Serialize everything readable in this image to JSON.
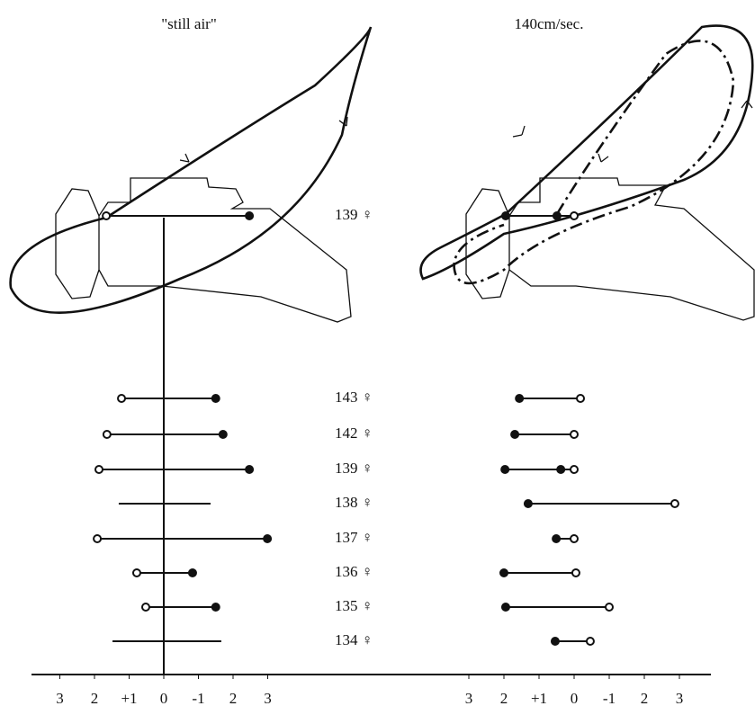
{
  "specimens": [
    "139 ♀",
    "143 ♀",
    "142 ♀",
    "139 ♀",
    "138 ♀",
    "137 ♀",
    "136 ♀",
    "135 ♀",
    "134 ♀"
  ],
  "panels": [
    {
      "title": "\"still air\"",
      "xticks": [
        3,
        {
          "value": 2,
          "label": "2"
        },
        {
          "value": 1,
          "label": "+1"
        },
        0,
        -1,
        {
          "value": -2,
          "label": "2"
        },
        {
          "value": -3,
          "label": "3"
        }
      ],
      "rows": [
        [
          {
            "value": 1.66,
            "marker": "open"
          },
          {
            "value": -2.47,
            "marker": "filled"
          }
        ],
        [
          {
            "value": 1.22,
            "marker": "open"
          },
          {
            "value": -1.5,
            "marker": "filled"
          }
        ],
        [
          {
            "value": 1.64,
            "marker": "open"
          },
          {
            "value": -1.71,
            "marker": "filled"
          }
        ],
        [
          {
            "value": 1.87,
            "marker": "open"
          },
          {
            "value": -2.47,
            "marker": "filled"
          }
        ],
        [
          {
            "value": 1.3,
            "marker": "none"
          },
          {
            "value": -1.35,
            "marker": "none"
          }
        ],
        [
          {
            "value": 1.92,
            "marker": "open"
          },
          {
            "value": -2.99,
            "marker": "filled"
          }
        ],
        [
          {
            "value": 0.78,
            "marker": "open"
          },
          {
            "value": -0.83,
            "marker": "filled"
          }
        ],
        [
          {
            "value": 0.52,
            "marker": "open"
          },
          {
            "value": -1.5,
            "marker": "filled"
          }
        ],
        [
          {
            "value": 1.48,
            "marker": "none"
          },
          {
            "value": -1.66,
            "marker": "none"
          }
        ]
      ]
    },
    {
      "title": "140cm/sec.",
      "xticks": [
        3,
        {
          "value": 2,
          "label": "2"
        },
        {
          "value": 1,
          "label": "+1"
        },
        0,
        -1,
        {
          "value": -2,
          "label": "2"
        },
        {
          "value": -3,
          "label": "3"
        }
      ],
      "rows": [
        [
          {
            "value": 1.95,
            "marker": "filled"
          },
          {
            "value": 0.49,
            "marker": "filled"
          },
          {
            "value": 0,
            "marker": "open"
          }
        ],
        [
          {
            "value": 1.56,
            "marker": "filled"
          },
          {
            "value": -0.18,
            "marker": "open"
          }
        ],
        [
          {
            "value": 1.69,
            "marker": "filled"
          },
          {
            "value": 0,
            "marker": "open"
          }
        ],
        [
          {
            "value": 1.97,
            "marker": "filled"
          },
          {
            "value": 0.38,
            "marker": "filled"
          },
          {
            "value": 0,
            "marker": "open"
          }
        ],
        [
          {
            "value": 1.31,
            "marker": "filled"
          },
          {
            "value": -2.87,
            "marker": "open"
          }
        ],
        [
          {
            "value": 0.51,
            "marker": "filled"
          },
          {
            "value": 0,
            "marker": "open"
          }
        ],
        [
          {
            "value": 2.0,
            "marker": "filled"
          },
          {
            "value": -0.05,
            "marker": "open"
          }
        ],
        [
          {
            "value": 1.95,
            "marker": "filled"
          },
          {
            "value": -1.0,
            "marker": "open"
          }
        ],
        [
          {
            "value": 0.54,
            "marker": "filled"
          },
          {
            "value": -0.46,
            "marker": "open"
          }
        ]
      ]
    }
  ]
}
